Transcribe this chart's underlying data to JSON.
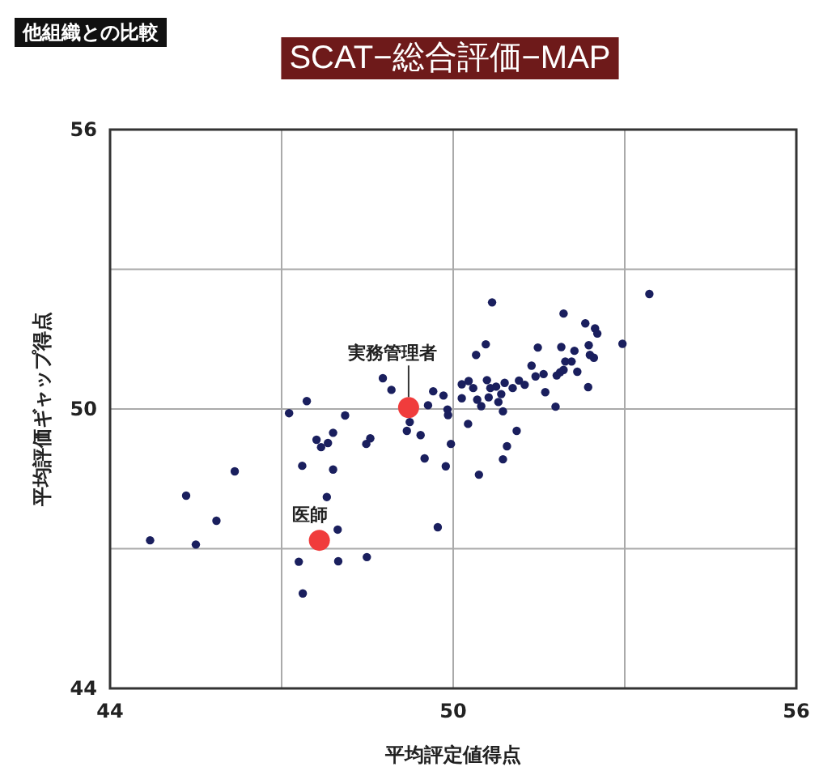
{
  "chart_data": {
    "type": "scatter",
    "title": "SCAT−総合評価−MAP",
    "subtitle": "他組織との比較",
    "xlabel": "平均評定値得点",
    "ylabel": "平均評価ギャップ得点",
    "xlim": [
      44,
      56
    ],
    "ylim": [
      44,
      56
    ],
    "xticks": [
      44,
      {
        "value": 47,
        "label": null
      },
      50,
      {
        "value": 53,
        "label": null
      },
      56
    ],
    "yticks": [
      44,
      {
        "value": 47,
        "label": null
      },
      50,
      {
        "value": 53,
        "label": null
      },
      56
    ],
    "grid": true,
    "marker": "circle",
    "series": [
      {
        "color": "#1a1f5e",
        "x": [
          44.7,
          45.5,
          45.33,
          45.86,
          46.18,
          47.13,
          47.44,
          47.36,
          47.61,
          47.69,
          47.81,
          47.9,
          48.11,
          47.9,
          47.79,
          47.98,
          47.3,
          47.99,
          48.49,
          47.37,
          48.48,
          48.55,
          48.77,
          48.92,
          49.19,
          49.24,
          49.43,
          49.5,
          49.87,
          49.73,
          49.96,
          49.65,
          49.83,
          49.56,
          49.9,
          49.91,
          50.68,
          53.43,
          51.93,
          52.31,
          52.48,
          52.52,
          52.96,
          50.57,
          50.4,
          51.48,
          51.89,
          52.12,
          52.37,
          52.39,
          52.46,
          51.96,
          52.07,
          51.37,
          51.93,
          51.87,
          52.17,
          51.58,
          51.44,
          51.81,
          52.36,
          50.15,
          50.27,
          50.35,
          50.15,
          50.42,
          50.49,
          50.59,
          50.65,
          50.75,
          50.62,
          50.79,
          50.84,
          50.9,
          50.87,
          51.04,
          51.15,
          51.25,
          51.61,
          51.79,
          50.26,
          51.11,
          50.94,
          50.87,
          50.45
        ],
        "values": [
          47.18,
          47.09,
          48.14,
          47.6,
          48.66,
          49.91,
          50.17,
          48.78,
          49.34,
          49.18,
          49.27,
          49.49,
          49.86,
          48.7,
          48.11,
          47.41,
          46.72,
          46.73,
          46.82,
          46.04,
          49.25,
          49.37,
          50.66,
          50.41,
          49.53,
          49.72,
          49.44,
          48.94,
          48.77,
          47.46,
          49.25,
          50.38,
          50.29,
          50.08,
          49.99,
          49.87,
          52.29,
          52.47,
          52.05,
          51.84,
          51.73,
          51.62,
          51.4,
          51.39,
          51.16,
          51.32,
          51.33,
          51.25,
          51.37,
          51.16,
          51.1,
          51.02,
          51.02,
          50.93,
          50.84,
          50.79,
          50.8,
          50.75,
          50.7,
          50.72,
          50.47,
          50.53,
          50.6,
          50.45,
          50.23,
          50.2,
          50.06,
          50.62,
          50.45,
          50.48,
          50.25,
          50.15,
          50.32,
          50.56,
          49.95,
          50.45,
          50.61,
          50.52,
          50.36,
          50.05,
          49.68,
          49.53,
          49.2,
          48.92,
          48.59
        ]
      },
      {
        "name": "医師",
        "color": "#f03c3c",
        "x": [
          47.66
        ],
        "values": [
          47.18
        ]
      },
      {
        "name": "実務管理者",
        "color": "#f03c3c",
        "x": [
          49.22
        ],
        "values": [
          50.03
        ]
      }
    ]
  }
}
